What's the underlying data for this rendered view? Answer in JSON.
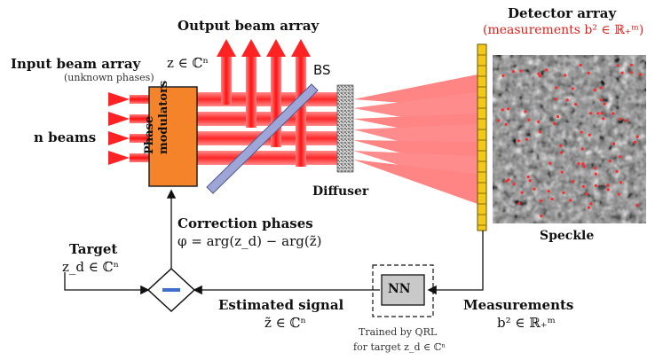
{
  "labels": {
    "output_beam_array": "Output beam array",
    "input_beam_array": "Input beam array",
    "input_z": "z ∈ ℂⁿ",
    "unknown_phases": "(unknown phases)",
    "n_beams": "n beams",
    "phase_modulators": "Phase modulators",
    "bs": "BS",
    "diffuser": "Diffuser",
    "detector_array": "Detector array",
    "measurements_b2": "(measurements b² ∈ ℝ₊ᵐ)",
    "speckle": "Speckle",
    "correction_phases": "Correction phases",
    "correction_formula": "φ = arg(z_d) − arg(z̃)",
    "target": "Target",
    "target_zd": "z_d ∈ ℂⁿ",
    "estimated_signal": "Estimated signal",
    "estimated_z": "z̃ ∈ ℂⁿ",
    "nn": "NN",
    "trained_by": "Trained by QRL",
    "for_target": "for target z_d ∈ ℂⁿ",
    "measurements": "Measurements",
    "measurements_b2_short": "b² ∈ ℝ₊ᵐ"
  },
  "colors": {
    "beam_red": "#ff1f1f",
    "modulator_orange": "#f5832a",
    "bs_blue": "#9ea6d8",
    "detector_yellow": "#f2c81a",
    "nn_gray": "#c9c9c9",
    "text_red": "#e0201a"
  }
}
